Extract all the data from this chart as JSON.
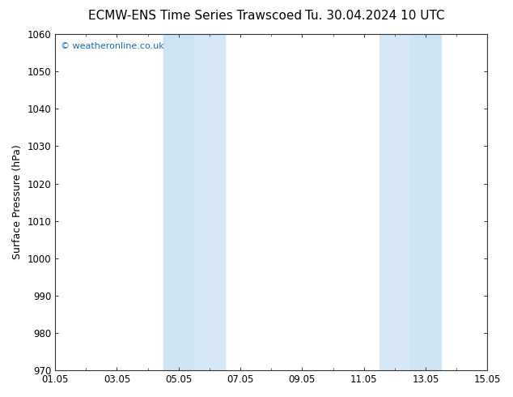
{
  "title_left": "ECMW-ENS Time Series Trawscoed",
  "title_right": "Tu. 30.04.2024 10 UTC",
  "ylabel": "Surface Pressure (hPa)",
  "ylim": [
    970,
    1060
  ],
  "yticks": [
    970,
    980,
    990,
    1000,
    1010,
    1020,
    1030,
    1040,
    1050,
    1060
  ],
  "xtick_labels": [
    "01.05",
    "03.05",
    "05.05",
    "07.05",
    "09.05",
    "11.05",
    "13.05",
    "15.05"
  ],
  "xtick_positions_days": [
    0,
    2,
    4,
    6,
    8,
    10,
    12,
    14
  ],
  "shaded_bands": [
    {
      "start_day": 3.5,
      "end_day": 4.5
    },
    {
      "start_day": 4.5,
      "end_day": 5.5
    },
    {
      "start_day": 10.5,
      "end_day": 11.5
    },
    {
      "start_day": 11.5,
      "end_day": 12.5
    }
  ],
  "shade_colors": [
    "#cde4f5",
    "#d6e8f7",
    "#d6e8f7",
    "#cde4f5"
  ],
  "background_color": "#ffffff",
  "watermark_text": "© weatheronline.co.uk",
  "watermark_color": "#1a6bb5",
  "watermark_fontsize": 8,
  "title_fontsize": 11,
  "tick_fontsize": 8.5,
  "ylabel_fontsize": 9,
  "total_days": 14
}
